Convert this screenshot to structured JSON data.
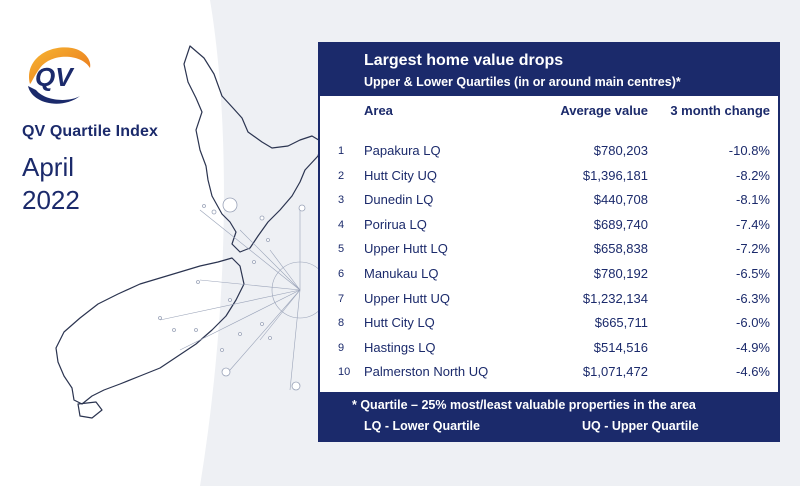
{
  "brand": {
    "logo_text": "QV",
    "title": "QV Quartile Index",
    "month": "April",
    "year": "2022",
    "colors": {
      "navy": "#1b2a6b",
      "accent_orange": "#f5a623",
      "background": "#eef0f4"
    }
  },
  "table": {
    "title": "Largest home value drops",
    "subtitle": "Upper & Lower Quartiles (in or around main centres)*",
    "headers": {
      "area": "Area",
      "average": "Average value",
      "change": "3 month change"
    },
    "rows": [
      {
        "rank": "1",
        "area": "Papakura LQ",
        "average": "$780,203",
        "change": "-10.8%"
      },
      {
        "rank": "2",
        "area": "Hutt City UQ",
        "average": "$1,396,181",
        "change": "-8.2%"
      },
      {
        "rank": "3",
        "area": "Dunedin LQ",
        "average": "$440,708",
        "change": "-8.1%"
      },
      {
        "rank": "4",
        "area": "Porirua LQ",
        "average": "$689,740",
        "change": "-7.4%"
      },
      {
        "rank": "5",
        "area": "Upper Hutt LQ",
        "average": "$658,838",
        "change": "-7.2%"
      },
      {
        "rank": "6",
        "area": "Manukau LQ",
        "average": "$780,192",
        "change": "-6.5%"
      },
      {
        "rank": "7",
        "area": "Upper Hutt UQ",
        "average": "$1,232,134",
        "change": "-6.3%"
      },
      {
        "rank": "8",
        "area": "Hutt City LQ",
        "average": "$665,711",
        "change": "-6.0%"
      },
      {
        "rank": "9",
        "area": "Hastings LQ",
        "average": "$514,516",
        "change": "-4.9%"
      },
      {
        "rank": "10",
        "area": "Palmerston North UQ",
        "average": "$1,071,472",
        "change": "-4.6%"
      }
    ],
    "footer": {
      "note": "*  Quartile – 25% most/least valuable properties in the area",
      "lq": "LQ - Lower Quartile",
      "uq": "UQ - Upper Quartile"
    }
  }
}
